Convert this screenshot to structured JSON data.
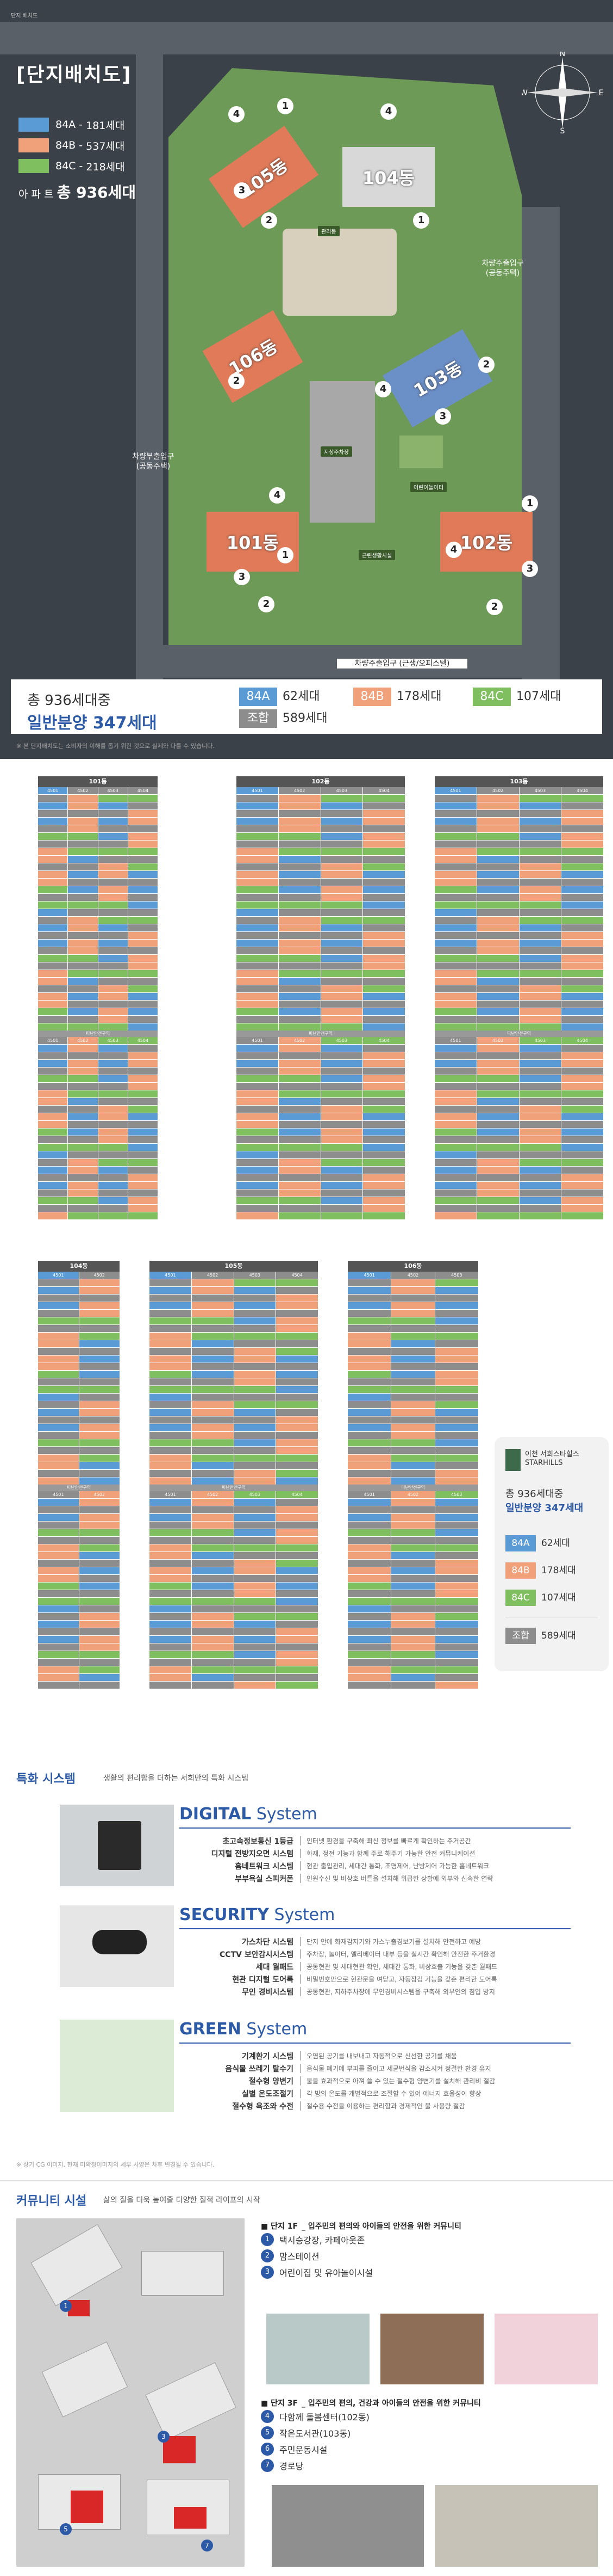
{
  "plan": {
    "header_mark": "단지 배치도",
    "title": "[단지배치도]",
    "legend": [
      {
        "type": "84A",
        "units": "181세대",
        "color": "#5b9bd5"
      },
      {
        "type": "84B",
        "units": "537세대",
        "color": "#f0a17a"
      },
      {
        "type": "84C",
        "units": "218세대",
        "color": "#7fbf5f"
      }
    ],
    "total_label": "아 파 트",
    "total_value": "총 936세대",
    "buildings": [
      "105동",
      "104동",
      "106동",
      "103동",
      "101동",
      "102동"
    ],
    "facilities": [
      "관리동",
      "지상주차장",
      "어린이놀이터",
      "근린생활시설"
    ],
    "gates": {
      "east": "차량주출입구\n(공동주택)",
      "west": "차량부출입구\n(공동주택)",
      "south": "차량주출입구 (근생/오피스텔)"
    },
    "compass": [
      "N",
      "S",
      "E",
      "W"
    ],
    "summary": {
      "line1": "총 936세대중",
      "line2": "일반분양 347세대",
      "chips": [
        {
          "type": "84A",
          "value": "62세대",
          "color": "#5b9bd5"
        },
        {
          "type": "84B",
          "value": "178세대",
          "color": "#f0a17a"
        },
        {
          "type": "84C",
          "value": "107세대",
          "color": "#7fbf5f"
        },
        {
          "type": "조합",
          "value": "589세대",
          "color": "#8d8d8d"
        }
      ]
    },
    "footnote": "※ 본 단지배치도는 소비자의 이해를 돕기 위한 것으로 실제와 다를 수 있습니다."
  },
  "tables": {
    "row1": [
      {
        "title": "101동",
        "cols": [
          "4501",
          "4502",
          "4503",
          "4504"
        ]
      },
      {
        "title": "102동",
        "cols": [
          "4501",
          "4502",
          "4503",
          "4504"
        ]
      },
      {
        "title": "103동",
        "cols": [
          "4501",
          "4502",
          "4503",
          "4504"
        ]
      }
    ],
    "row2": [
      {
        "title": "104동",
        "cols": [
          "4501",
          "4502"
        ]
      },
      {
        "title": "105동",
        "cols": [
          "4501",
          "4502",
          "4503",
          "4504"
        ]
      },
      {
        "title": "106동",
        "cols": [
          "4501",
          "4502",
          "4503"
        ]
      }
    ],
    "sep_label": "피난안전구역",
    "side": {
      "brand": "이천 서희스타힐스\nSTARHILLS",
      "line1": "총 936세대중",
      "line2": "일반분양 347세대",
      "rows": [
        {
          "type": "84A",
          "value": "62세대",
          "color": "#5b9bd5"
        },
        {
          "type": "84B",
          "value": "178세대",
          "color": "#f0a17a"
        },
        {
          "type": "84C",
          "value": "107세대",
          "color": "#7fbf5f"
        },
        {
          "type": "조합",
          "value": "589세대",
          "color": "#8d8d8d"
        }
      ]
    }
  },
  "systems": {
    "title": "특화 시스템",
    "subtitle": "생활의 편리함을 더하는 서희만의 특화 시스템",
    "blocks": [
      {
        "bold": "DIGITAL",
        "rest": " System",
        "items": [
          {
            "k": "초고속정보통신 1등급",
            "v": "인터넷 환경을 구축해 최신 정보를 빠르게 확인하는 주거공간"
          },
          {
            "k": "디지털 전방지오면 시스템",
            "v": "화재, 정전 기능과 함께 주로 해주기 가능한 안전 커뮤니케이션"
          },
          {
            "k": "홈네트워크 시스템",
            "v": "현관 출입관리, 세대간 통화, 조명제어, 난방제어 가능한 홈네트워크"
          },
          {
            "k": "부부욕실 스피커폰",
            "v": "인원수신 및 비상호 버튼을 설치해 위급한 상황에 외부와 신속한 연락"
          }
        ]
      },
      {
        "bold": "SECURITY",
        "rest": " System",
        "items": [
          {
            "k": "가스차단 시스템",
            "v": "단지 안에 화재감지기와 가스누출경보기를 설치해 안전하고 예방"
          },
          {
            "k": "CCTV 보안감시시스템",
            "v": "주차장, 놀이터, 엘리베이터 내부 등을 실시간 확인해 안전한 주거환경"
          },
          {
            "k": "세대 월패드",
            "v": "공동현관 및 세대현관 확인, 세대간 통화, 비상호출 기능을 갖춘 월패드"
          },
          {
            "k": "현관 디지털 도어록",
            "v": "비밀번호만으로 현관문을 여닫고, 자동잠김 기능을 갖춘 편리한 도어록"
          },
          {
            "k": "무인 경비시스템",
            "v": "공동현관, 지하주차장에 무인경비시스템을 구축해 외부인의 침입 방지"
          }
        ]
      },
      {
        "bold": "GREEN",
        "rest": " System",
        "items": [
          {
            "k": "기계환기 시스템",
            "v": "오염된 공기를 내보내고 자동적으로 신선한 공기를 채움"
          },
          {
            "k": "음식물 쓰레기 탈수기",
            "v": "음식물 폐기에 부피를 줄이고 세균번식을 감소시켜 청결한 환경 유지"
          },
          {
            "k": "절수형 양변기",
            "v": "물을 효과적으로 아껴 쓸 수 있는 절수형 양변기를 설치해 관리비 절감"
          },
          {
            "k": "실별 온도조절기",
            "v": "각 방의 온도를 개별적으로 조절할 수 있어 에너지 효율성이 향상"
          },
          {
            "k": "절수형 욕조와 수전",
            "v": "절수용 수전을 이용하는 편리함과 경제적인 물 사용량 절감"
          }
        ]
      }
    ],
    "note": "※ 상기 CG 이미지, 현재 미확정이미지의 세부 사양은 차후 변경될 수 있습니다."
  },
  "community": {
    "title": "커뮤니티 시설",
    "subtitle": "삶의 질을 더욱 높여줄 다양한 질적 라이프의 시작",
    "floor1": {
      "label": "■ 단지 1F",
      "desc": "_ 입주민의 편의와 아이들의 안전을 위한 커뮤니티",
      "items": [
        "택시승강장, 카페아웃존",
        "맘스테이션",
        "어린이집 및 유아놀이시설"
      ]
    },
    "floor3": {
      "label": "■ 단지 3F",
      "desc": "_ 입주민의 편의, 건강과 아이들의 안전을 위한 커뮤니티",
      "items": [
        "다함께 돌봄센터(102동)",
        "작은도서관(103동)",
        "주민운동시설",
        "경로당"
      ]
    }
  }
}
